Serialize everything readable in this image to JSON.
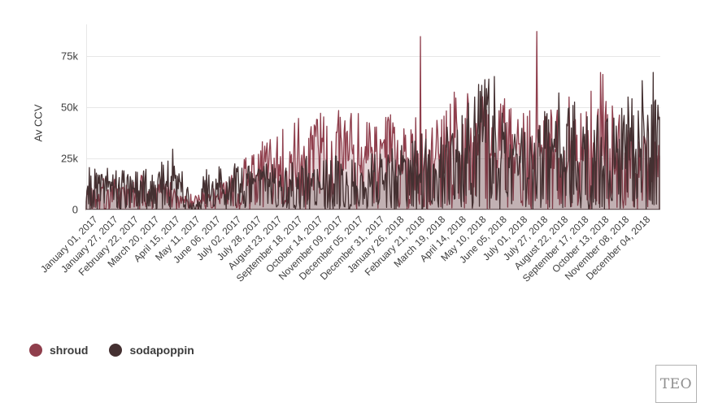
{
  "branding": {
    "logo_text": "TEO"
  },
  "legend": {
    "items": [
      {
        "label": "shroud",
        "color": "#8f3e4c"
      },
      {
        "label": "sodapoppin",
        "color": "#443031"
      }
    ]
  },
  "chart_data": {
    "type": "area",
    "title": "",
    "xlabel": "",
    "ylabel": "Av CCV",
    "grid": "horizontal",
    "legend_position": "bottom-left",
    "ylim_k": [
      0,
      90
    ],
    "y_ticks": [
      "0",
      "25k",
      "50k",
      "75k"
    ],
    "y_tick_values_k": [
      0,
      25,
      50,
      75
    ],
    "x_tick_interval_days": 26,
    "days_total": 730,
    "x_tick_labels": [
      "January 01, 2017",
      "January 27, 2017",
      "February 22, 2017",
      "March 20, 2017",
      "April 15, 2017",
      "May 11, 2017",
      "June 06, 2017",
      "July 02, 2017",
      "July 28, 2017",
      "August 23, 2017",
      "September 18, 2017",
      "October 14, 2017",
      "November 09, 2017",
      "December 05, 2017",
      "December 31, 2017",
      "January 26, 2018",
      "February 21, 2018",
      "March 19, 2018",
      "April 14, 2018",
      "May 10, 2018",
      "June 05, 2018",
      "July 01, 2018",
      "July 27, 2018",
      "August 22, 2018",
      "September 17, 2018",
      "October 13, 2018",
      "November 08, 2018",
      "December 04, 2018"
    ],
    "sampling_note": "daily values estimated from weekly anchor levels (thousands of avg concurrent viewers); notable single-day peaks listed in spikes",
    "series": [
      {
        "name": "shroud",
        "color": "#8f3e4c",
        "fill_opacity": 0.22,
        "weekly_k": [
          8,
          10,
          7,
          11,
          9,
          12,
          8,
          10,
          11,
          9,
          13,
          10,
          8,
          9,
          12,
          10,
          7,
          6,
          5,
          6,
          5,
          6,
          8,
          7,
          9,
          10,
          11,
          13,
          15,
          18,
          20,
          23,
          25,
          27,
          26,
          28,
          30,
          29,
          31,
          32,
          30,
          34,
          32,
          35,
          32,
          31,
          34,
          30,
          32,
          35,
          31,
          30,
          32,
          35,
          31,
          34,
          30,
          33,
          29,
          31,
          33,
          31,
          34,
          31,
          30,
          34,
          38,
          40,
          36,
          38,
          42,
          38,
          40,
          40,
          36,
          35,
          38,
          34,
          35,
          33,
          36,
          40,
          36,
          34,
          38,
          35,
          33,
          32,
          35,
          33,
          36,
          42,
          45,
          48,
          44,
          38,
          34,
          36,
          32,
          30,
          28,
          25,
          27,
          24,
          22
        ],
        "spikes": [
          {
            "day": 425,
            "k": 84.5
          },
          {
            "day": 573,
            "k": 87
          },
          {
            "day": 614,
            "k": 55
          },
          {
            "day": 657,
            "k": 66
          }
        ]
      },
      {
        "name": "sodapoppin",
        "color": "#443031",
        "fill_opacity": 0.22,
        "weekly_k": [
          13,
          16,
          12,
          15,
          14,
          17,
          13,
          15,
          16,
          13,
          18,
          14,
          12,
          15,
          18,
          20,
          16,
          14,
          12,
          3,
          2,
          10,
          15,
          13,
          16,
          14,
          15,
          17,
          14,
          16,
          15,
          18,
          14,
          17,
          15,
          16,
          14,
          17,
          15,
          16,
          18,
          15,
          17,
          18,
          16,
          19,
          17,
          15,
          18,
          20,
          17,
          19,
          19,
          21,
          18,
          22,
          20,
          23,
          20,
          24,
          24,
          26,
          24,
          27,
          25,
          27,
          30,
          29,
          32,
          36,
          40,
          44,
          42,
          48,
          40,
          36,
          35,
          33,
          30,
          33,
          28,
          31,
          30,
          33,
          36,
          32,
          30,
          32,
          36,
          38,
          34,
          33,
          30,
          32,
          28,
          32,
          36,
          35,
          38,
          38,
          42,
          45,
          40,
          38
        ],
        "spikes": [
          {
            "day": 110,
            "k": 29.5
          },
          {
            "day": 494,
            "k": 55
          },
          {
            "day": 519,
            "k": 65
          },
          {
            "day": 601,
            "k": 57
          },
          {
            "day": 707,
            "k": 63
          },
          {
            "day": 721,
            "k": 67
          }
        ]
      }
    ]
  },
  "render": {
    "seed": 1337,
    "noise_base": 0.5,
    "noise_span": 0.95,
    "offline_prob": 0.28,
    "offline_scale": 0.3,
    "colors": {
      "gridline": "#e7e7e7",
      "baseline": "#d8d8d8",
      "spine": "#e7e7e7",
      "text": "#3d3d3d"
    }
  }
}
